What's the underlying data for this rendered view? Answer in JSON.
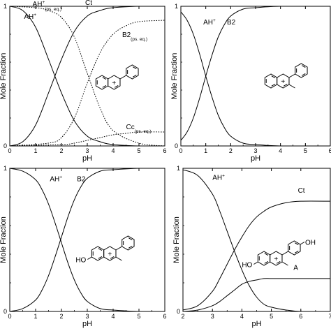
{
  "chart_data": [
    {
      "type": "line",
      "xlabel": "pH",
      "ylabel": "Mole Fraction",
      "xlim": [
        0,
        6
      ],
      "ylim": [
        0,
        1
      ],
      "xticks": [
        "0",
        "1",
        "2",
        "3",
        "4",
        "5",
        "6"
      ],
      "yticks": [
        "0",
        "1"
      ],
      "grid": false,
      "series": [
        {
          "name": "AH+",
          "style": "solid",
          "x": [
            0,
            0.5,
            1,
            1.5,
            2,
            2.5,
            3,
            3.5,
            4,
            5,
            6
          ],
          "y": [
            1.0,
            0.97,
            0.85,
            0.62,
            0.38,
            0.18,
            0.07,
            0.03,
            0.01,
            0.0,
            0.0
          ]
        },
        {
          "name": "Ct",
          "style": "solid",
          "x": [
            0,
            0.5,
            1,
            1.5,
            2,
            2.5,
            3,
            3.5,
            4,
            5,
            6
          ],
          "y": [
            0.0,
            0.03,
            0.15,
            0.38,
            0.62,
            0.82,
            0.93,
            0.97,
            0.99,
            1.0,
            1.0
          ]
        },
        {
          "name": "AH+ (ps. eq.)",
          "style": "dotted",
          "x": [
            0,
            1,
            1.5,
            2,
            2.5,
            3,
            3.5,
            4,
            5,
            6
          ],
          "y": [
            1.0,
            0.99,
            0.97,
            0.92,
            0.78,
            0.52,
            0.27,
            0.11,
            0.02,
            0.0
          ]
        },
        {
          "name": "B2 (ps. eq.)",
          "style": "dotted",
          "x": [
            0,
            1.5,
            2,
            2.5,
            3,
            3.5,
            4,
            4.5,
            5,
            6
          ],
          "y": [
            0.0,
            0.02,
            0.06,
            0.2,
            0.45,
            0.67,
            0.8,
            0.86,
            0.89,
            0.9
          ]
        },
        {
          "name": "Cc (ps. eq.)",
          "style": "dotted",
          "x": [
            0,
            2,
            2.5,
            3,
            3.5,
            4,
            4.5,
            5,
            6
          ],
          "y": [
            0.0,
            0.01,
            0.02,
            0.04,
            0.06,
            0.08,
            0.09,
            0.1,
            0.1
          ]
        }
      ],
      "annotations": [
        {
          "text": "AH",
          "sup": "+",
          "sub": "",
          "x": 0.55,
          "y": 0.91
        },
        {
          "text": "AH",
          "sup": "+",
          "sub": "(ps. eq.)",
          "x": 0.88,
          "y": 1.0
        },
        {
          "text": "Ct",
          "sup": "",
          "sub": "",
          "x": 2.92,
          "y": 1.01
        },
        {
          "text": "B2",
          "sup": "",
          "sub": "(ps. eq.)",
          "x": 4.35,
          "y": 0.78
        },
        {
          "text": "Cc",
          "sup": "",
          "sub": "(ps. eq.)",
          "x": 4.5,
          "y": 0.12
        }
      ]
    },
    {
      "type": "line",
      "xlabel": "pH",
      "ylabel": "Mole Fraction",
      "xlim": [
        0,
        6
      ],
      "ylim": [
        0,
        1
      ],
      "xticks": [
        "0",
        "1",
        "2",
        "3",
        "4",
        "5",
        "6"
      ],
      "yticks": [
        "0",
        "1"
      ],
      "grid": false,
      "series": [
        {
          "name": "AH+",
          "style": "solid",
          "x": [
            0,
            0.25,
            0.5,
            0.75,
            1,
            1.25,
            1.5,
            1.75,
            2,
            2.5,
            3,
            4,
            6
          ],
          "y": [
            0.96,
            0.9,
            0.8,
            0.66,
            0.5,
            0.35,
            0.22,
            0.13,
            0.07,
            0.02,
            0.01,
            0.0,
            0.0
          ]
        },
        {
          "name": "B2",
          "style": "solid",
          "x": [
            0,
            0.25,
            0.5,
            0.75,
            1,
            1.25,
            1.5,
            1.75,
            2,
            2.5,
            3,
            4,
            6
          ],
          "y": [
            0.04,
            0.1,
            0.2,
            0.34,
            0.5,
            0.65,
            0.78,
            0.87,
            0.93,
            0.98,
            0.99,
            1.0,
            1.0
          ]
        }
      ],
      "annotations": [
        {
          "text": "AH",
          "sup": "+",
          "sub": "",
          "x": 0.9,
          "y": 0.87
        },
        {
          "text": "B2",
          "sup": "",
          "sub": "",
          "x": 1.85,
          "y": 0.87
        }
      ]
    },
    {
      "type": "line",
      "xlabel": "pH",
      "ylabel": "Mole Fraction",
      "xlim": [
        0,
        6
      ],
      "ylim": [
        0,
        1
      ],
      "xticks": [
        "0",
        "1",
        "2",
        "3",
        "4",
        "5",
        "6"
      ],
      "yticks": [
        "0",
        "1"
      ],
      "grid": false,
      "series": [
        {
          "name": "AH+",
          "style": "solid",
          "x": [
            0,
            0.5,
            1,
            1.25,
            1.5,
            1.75,
            2,
            2.25,
            2.5,
            2.75,
            3,
            3.5,
            4,
            5,
            6
          ],
          "y": [
            1.0,
            0.98,
            0.92,
            0.85,
            0.75,
            0.62,
            0.48,
            0.34,
            0.22,
            0.13,
            0.07,
            0.02,
            0.01,
            0.0,
            0.0
          ]
        },
        {
          "name": "B2",
          "style": "solid",
          "x": [
            0,
            0.5,
            1,
            1.25,
            1.5,
            1.75,
            2,
            2.25,
            2.5,
            2.75,
            3,
            3.5,
            4,
            5,
            6
          ],
          "y": [
            0.0,
            0.02,
            0.08,
            0.15,
            0.25,
            0.38,
            0.52,
            0.66,
            0.78,
            0.87,
            0.93,
            0.98,
            0.99,
            1.0,
            1.0
          ]
        }
      ],
      "annotations": [
        {
          "text": "AH",
          "sup": "+",
          "sub": "",
          "x": 1.55,
          "y": 0.91
        },
        {
          "text": "B2",
          "sup": "",
          "sub": "",
          "x": 2.6,
          "y": 0.91
        }
      ]
    },
    {
      "type": "line",
      "xlabel": "pH",
      "ylabel": "Mole Fraction",
      "xlim": [
        2,
        7
      ],
      "ylim": [
        0,
        1
      ],
      "xticks": [
        "2",
        "3",
        "4",
        "5",
        "6",
        "7"
      ],
      "yticks": [
        "0",
        "1"
      ],
      "grid": false,
      "series": [
        {
          "name": "AH+",
          "style": "solid",
          "x": [
            2,
            2.5,
            3,
            3.25,
            3.5,
            3.75,
            4,
            4.25,
            4.5,
            4.75,
            5,
            5.5,
            6,
            7
          ],
          "y": [
            0.99,
            0.95,
            0.82,
            0.7,
            0.56,
            0.42,
            0.29,
            0.18,
            0.1,
            0.05,
            0.03,
            0.01,
            0.0,
            0.0
          ]
        },
        {
          "name": "Ct",
          "style": "solid",
          "x": [
            2,
            2.5,
            3,
            3.25,
            3.5,
            3.75,
            4,
            4.25,
            4.5,
            4.75,
            5,
            5.5,
            6,
            7
          ],
          "y": [
            0.01,
            0.04,
            0.14,
            0.23,
            0.33,
            0.43,
            0.52,
            0.6,
            0.66,
            0.7,
            0.73,
            0.76,
            0.77,
            0.77
          ]
        },
        {
          "name": "A",
          "style": "solid",
          "x": [
            2,
            2.5,
            3,
            3.25,
            3.5,
            3.75,
            4,
            4.25,
            4.5,
            4.75,
            5,
            5.5,
            6,
            7
          ],
          "y": [
            0.0,
            0.01,
            0.04,
            0.07,
            0.11,
            0.15,
            0.19,
            0.21,
            0.22,
            0.23,
            0.23,
            0.23,
            0.23,
            0.23
          ]
        }
      ],
      "annotations": [
        {
          "text": "AH",
          "sup": "+",
          "sub": "",
          "x": 3.0,
          "y": 0.92
        },
        {
          "text": "Ct",
          "sup": "",
          "sub": "",
          "x": 5.9,
          "y": 0.83
        },
        {
          "text": "A",
          "sup": "",
          "sub": "",
          "x": 5.75,
          "y": 0.29
        }
      ]
    }
  ],
  "molecules": [
    {
      "name": "flavylium-icon",
      "label_charge": "+",
      "substituents": []
    },
    {
      "name": "3-methylflavylium-icon",
      "label_charge": "+",
      "substituents": []
    },
    {
      "name": "7-hydroxy-3-methylflavylium-icon",
      "label_charge": "+",
      "substituents": [
        "HO"
      ]
    },
    {
      "name": "7-4'-dihydroxy-3-methylflavylium-icon",
      "label_charge": "+",
      "substituents": [
        "HO",
        "OH"
      ]
    }
  ]
}
